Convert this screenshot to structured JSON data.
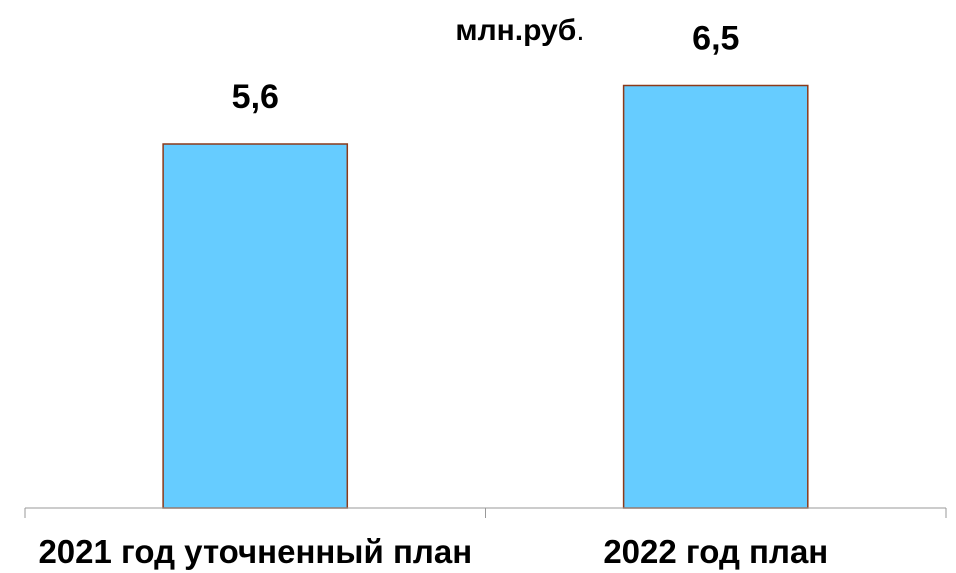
{
  "chart_data": {
    "type": "bar",
    "unit_label": "млн.руб",
    "unit_label_suffix": ".",
    "categories": [
      "2021 год уточненный план",
      "2022 год план"
    ],
    "values": [
      5.6,
      6.5
    ],
    "value_labels": [
      "5,6",
      "6,5"
    ],
    "ylim": [
      0,
      7.2
    ],
    "grid": false,
    "legend": "none",
    "colors": {
      "bar_fill": "#66ccff",
      "bar_stroke": "#8b3a1a",
      "axis": "#999999",
      "text": "#000000"
    }
  }
}
